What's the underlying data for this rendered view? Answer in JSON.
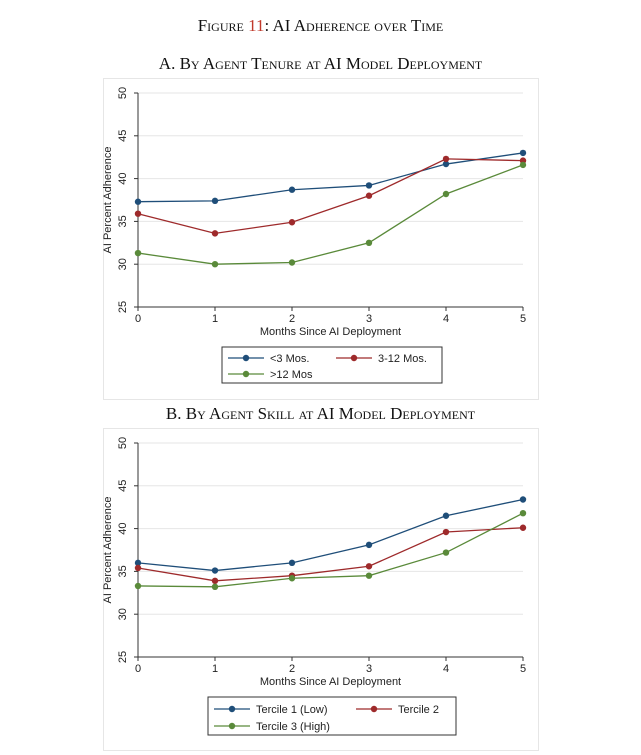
{
  "figure": {
    "prefix": "Figure ",
    "number": "11",
    "suffix": ": AI Adherence over Time"
  },
  "chart_data": [
    {
      "type": "line",
      "title": "A. By Agent Tenure at AI Model Deployment",
      "xlabel": "Months Since AI Deployment",
      "ylabel": "AI Percent Adherence",
      "x": [
        0,
        1,
        2,
        3,
        4,
        5
      ],
      "xlim": [
        0,
        5
      ],
      "ylim": [
        25,
        50
      ],
      "yticks": [
        25,
        30,
        35,
        40,
        45,
        50
      ],
      "grid": true,
      "legend_position": "bottom",
      "series": [
        {
          "name": "<3 Mos.",
          "color": "#1f4e79",
          "values": [
            37.3,
            37.4,
            38.7,
            39.2,
            41.7,
            43.0
          ]
        },
        {
          "name": "3-12 Mos.",
          "color": "#9e2a2b",
          "values": [
            35.9,
            33.6,
            34.9,
            38.0,
            42.3,
            42.1
          ]
        },
        {
          "name": ">12 Mos",
          "color": "#5a8a3a",
          "values": [
            31.3,
            30.0,
            30.2,
            32.5,
            38.2,
            41.6
          ]
        }
      ]
    },
    {
      "type": "line",
      "title": "B. By Agent Skill at AI Model Deployment",
      "xlabel": "Months Since AI Deployment",
      "ylabel": "AI Percent Adherence",
      "x": [
        0,
        1,
        2,
        3,
        4,
        5
      ],
      "xlim": [
        0,
        5
      ],
      "ylim": [
        25,
        50
      ],
      "yticks": [
        25,
        30,
        35,
        40,
        45,
        50
      ],
      "grid": true,
      "legend_position": "bottom",
      "series": [
        {
          "name": "Tercile 1 (Low)",
          "color": "#1f4e79",
          "values": [
            36.0,
            35.1,
            36.0,
            38.1,
            41.5,
            43.4
          ]
        },
        {
          "name": "Tercile 2",
          "color": "#9e2a2b",
          "values": [
            35.4,
            33.9,
            34.5,
            35.6,
            39.6,
            40.1
          ]
        },
        {
          "name": "Tercile 3 (High)",
          "color": "#5a8a3a",
          "values": [
            33.3,
            33.2,
            34.2,
            34.5,
            37.2,
            41.8
          ]
        }
      ]
    }
  ]
}
